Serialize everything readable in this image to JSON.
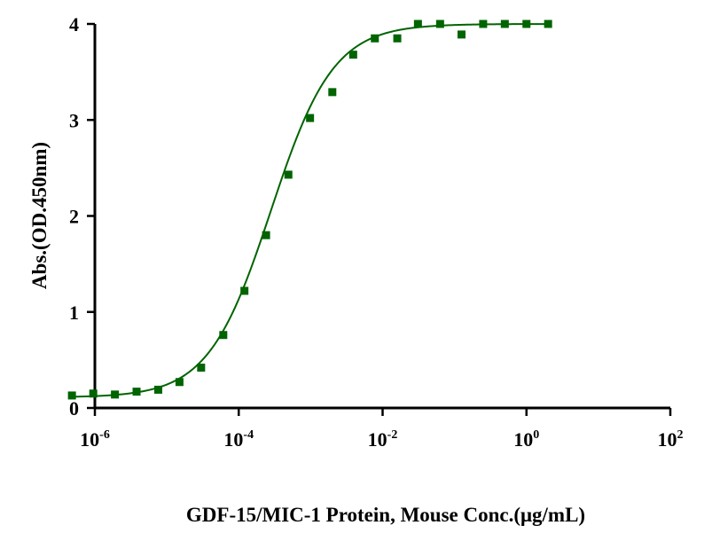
{
  "chart_data": {
    "type": "scatter",
    "title": "",
    "xlabel": "GDF-15/MIC-1 Protein, Mouse Conc.(μg/mL)",
    "ylabel": "Abs.(OD.450nm)",
    "x_scale": "log",
    "xlim": [
      1e-06,
      100
    ],
    "ylim": [
      0,
      4
    ],
    "x_ticks": [
      {
        "value": 1e-06,
        "base": "10",
        "exp": "-6"
      },
      {
        "value": 0.0001,
        "base": "10",
        "exp": "-4"
      },
      {
        "value": 0.01,
        "base": "10",
        "exp": "-2"
      },
      {
        "value": 1,
        "base": "10",
        "exp": "0"
      },
      {
        "value": 100,
        "base": "10",
        "exp": "2"
      }
    ],
    "y_ticks": [
      {
        "value": 0,
        "label": "0"
      },
      {
        "value": 1,
        "label": "1"
      },
      {
        "value": 2,
        "label": "2"
      },
      {
        "value": 3,
        "label": "3"
      },
      {
        "value": 4,
        "label": "4"
      }
    ],
    "grid": false,
    "series": [
      {
        "marker": "square",
        "color": "#006400",
        "fit": "4PL",
        "points": [
          {
            "x": 4.8e-07,
            "y": 0.13
          },
          {
            "x": 9.5e-07,
            "y": 0.15
          },
          {
            "x": 1.9e-06,
            "y": 0.14
          },
          {
            "x": 3.8e-06,
            "y": 0.17
          },
          {
            "x": 7.6e-06,
            "y": 0.19
          },
          {
            "x": 1.5e-05,
            "y": 0.27
          },
          {
            "x": 3e-05,
            "y": 0.42
          },
          {
            "x": 6.1e-05,
            "y": 0.76
          },
          {
            "x": 0.00012,
            "y": 1.22
          },
          {
            "x": 0.00024,
            "y": 1.8
          },
          {
            "x": 0.00049,
            "y": 2.43
          },
          {
            "x": 0.00098,
            "y": 3.02
          },
          {
            "x": 0.002,
            "y": 3.29
          },
          {
            "x": 0.0039,
            "y": 3.68
          },
          {
            "x": 0.0078,
            "y": 3.85
          },
          {
            "x": 0.016,
            "y": 3.85
          },
          {
            "x": 0.031,
            "y": 4.0
          },
          {
            "x": 0.063,
            "y": 4.0
          },
          {
            "x": 0.125,
            "y": 3.89
          },
          {
            "x": 0.25,
            "y": 4.0
          },
          {
            "x": 0.5,
            "y": 4.0
          },
          {
            "x": 1,
            "y": 4.0
          },
          {
            "x": 2,
            "y": 4.0
          }
        ],
        "fit_params": {
          "bottom": 0.11,
          "top": 4.0,
          "ec50": 0.00028,
          "hill": 1.0
        }
      }
    ]
  }
}
